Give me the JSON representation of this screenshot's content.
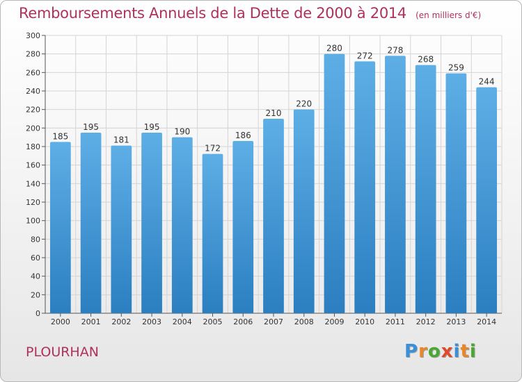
{
  "chart_data": {
    "type": "bar",
    "title": "Remboursements Annuels de la Dette de 2000 à 2014",
    "unit": "(en milliers d'€)",
    "categories": [
      "2000",
      "2001",
      "2002",
      "2003",
      "2004",
      "2005",
      "2006",
      "2007",
      "2008",
      "2009",
      "2010",
      "2011",
      "2012",
      "2013",
      "2014"
    ],
    "values": [
      185,
      195,
      181,
      195,
      190,
      172,
      186,
      210,
      220,
      280,
      272,
      278,
      268,
      259,
      244
    ],
    "ylim": [
      0,
      300
    ],
    "yticks": [
      0,
      20,
      40,
      60,
      80,
      100,
      120,
      140,
      160,
      180,
      200,
      220,
      240,
      260,
      280,
      300
    ],
    "grid": true,
    "bar_color": "#2b7fc0",
    "bar_color_light": "#5eaee6"
  },
  "footer": {
    "commune": "PLOURHAN",
    "brand": [
      "P",
      "r",
      "o",
      "x",
      "i",
      "t",
      "i"
    ],
    "brand_colors": [
      "#3a8fd8",
      "#e8862a",
      "#4aa832",
      "#e04a2a",
      "#3a8fd8",
      "#e8862a",
      "#4aa832"
    ]
  }
}
